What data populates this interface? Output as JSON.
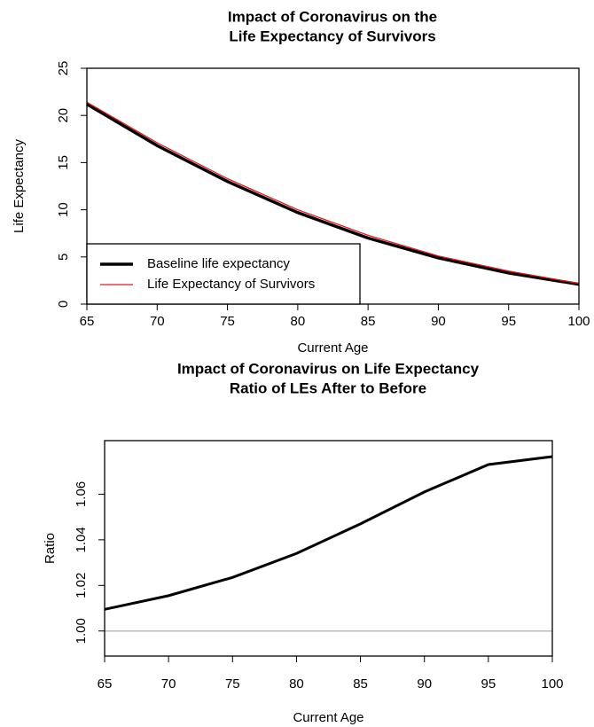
{
  "chart_data": [
    {
      "type": "line",
      "title": [
        "Impact of Coronavirus on the",
        "Life Expectancy of Survivors"
      ],
      "x_label": "Current Age",
      "y_label": "Life Expectancy",
      "x": [
        65,
        70,
        75,
        80,
        85,
        90,
        95,
        100
      ],
      "series": [
        {
          "name": "Baseline life expectancy",
          "color": "#000000",
          "width": 3.5,
          "values": [
            21.2,
            16.8,
            13.0,
            9.7,
            7.0,
            4.9,
            3.3,
            2.1
          ]
        },
        {
          "name": "Life Expectancy of Survivors",
          "color": "#e31a1c",
          "width": 1.3,
          "values": [
            21.4,
            17.1,
            13.3,
            10.0,
            7.3,
            5.1,
            3.5,
            2.2
          ]
        }
      ],
      "xlim": [
        65,
        100
      ],
      "xticks": [
        65,
        70,
        75,
        80,
        85,
        90,
        95,
        100
      ],
      "ylim": [
        0,
        25
      ],
      "yticks": [
        0,
        5,
        10,
        15,
        20,
        25
      ],
      "legend": "bottomleft"
    },
    {
      "type": "line",
      "title": [
        "Impact of Coronavirus on Life Expectancy",
        "Ratio of LEs After to Before"
      ],
      "x_label": "Current Age",
      "y_label": "Ratio",
      "x": [
        65,
        70,
        75,
        80,
        85,
        90,
        95,
        100
      ],
      "series": [
        {
          "color": "#000000",
          "width": 3,
          "values": [
            1.0095,
            1.0155,
            1.0235,
            1.034,
            1.047,
            1.061,
            1.073,
            1.0765
          ]
        }
      ],
      "hline": {
        "value": 1,
        "color": "#bbbbbb"
      },
      "xlim": [
        65,
        100
      ],
      "xticks": [
        65,
        70,
        75,
        80,
        85,
        90,
        95,
        100
      ],
      "ylim": [
        0.989,
        1.0835
      ],
      "yticks": [
        {
          "value": 1,
          "label": "1.00"
        },
        {
          "value": 1.02,
          "label": "1.02"
        },
        {
          "value": 1.04,
          "label": "1.04"
        },
        {
          "value": 1.06,
          "label": "1.06"
        }
      ]
    }
  ]
}
